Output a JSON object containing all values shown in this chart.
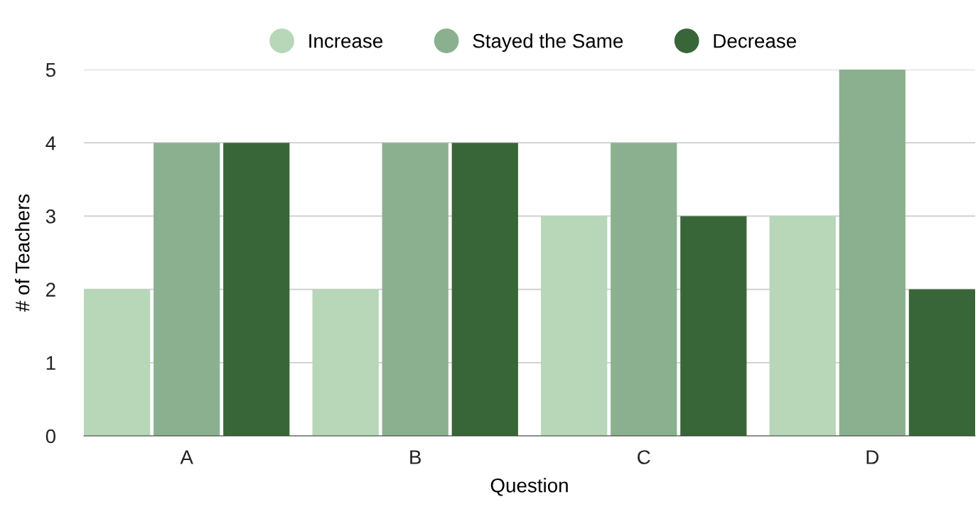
{
  "chart_data": {
    "type": "bar",
    "xlabel": "Question",
    "ylabel": "# of Teachers",
    "categories": [
      "A",
      "B",
      "C",
      "D"
    ],
    "series": [
      {
        "name": "Increase",
        "color": "#b7d7b8",
        "values": [
          2,
          2,
          3,
          3
        ]
      },
      {
        "name": "Stayed the Same",
        "color": "#8bb08f",
        "values": [
          4,
          4,
          4,
          5
        ]
      },
      {
        "name": "Decrease",
        "color": "#386638",
        "values": [
          4,
          4,
          3,
          2
        ]
      }
    ],
    "ylim": [
      0,
      5
    ],
    "yticks": [
      0,
      1,
      2,
      3,
      4,
      5
    ],
    "grid": "y",
    "legend": "top"
  }
}
